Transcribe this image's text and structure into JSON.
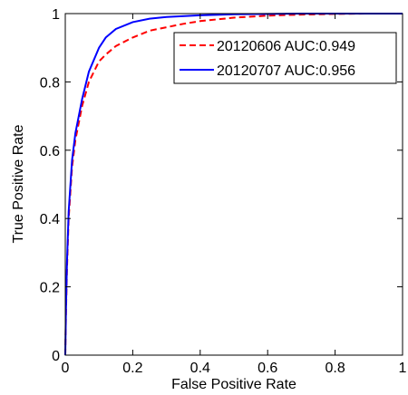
{
  "chart_data": {
    "type": "line",
    "title": "",
    "xlabel": "False Positive Rate",
    "ylabel": "True Positive Rate",
    "xlim": [
      0,
      1
    ],
    "ylim": [
      0,
      1
    ],
    "xticks": [
      "0",
      "0.2",
      "0.4",
      "0.6",
      "0.8",
      "1"
    ],
    "yticks": [
      "0",
      "0.2",
      "0.4",
      "0.6",
      "0.8",
      "1"
    ],
    "grid": false,
    "legend_position": "top-right",
    "series": [
      {
        "name": "20120606 AUC:0.949",
        "color": "#ff0000",
        "style": "dashed",
        "x": [
          0,
          0.002,
          0.005,
          0.01,
          0.02,
          0.03,
          0.05,
          0.07,
          0.1,
          0.12,
          0.15,
          0.2,
          0.25,
          0.3,
          0.35,
          0.4,
          0.5,
          0.6,
          0.7,
          0.8,
          0.9,
          1.0
        ],
        "y": [
          0,
          0.12,
          0.25,
          0.4,
          0.55,
          0.63,
          0.73,
          0.8,
          0.86,
          0.88,
          0.905,
          0.93,
          0.95,
          0.96,
          0.97,
          0.978,
          0.988,
          0.994,
          0.997,
          0.999,
          1.0,
          1.0
        ]
      },
      {
        "name": "20120707 AUC:0.956",
        "color": "#0000ff",
        "style": "solid",
        "x": [
          0,
          0.002,
          0.005,
          0.01,
          0.02,
          0.03,
          0.05,
          0.07,
          0.1,
          0.12,
          0.15,
          0.2,
          0.25,
          0.3,
          0.4,
          0.5,
          0.6,
          0.7,
          0.8,
          0.9,
          1.0
        ],
        "y": [
          0,
          0.13,
          0.27,
          0.42,
          0.57,
          0.65,
          0.75,
          0.83,
          0.9,
          0.93,
          0.955,
          0.975,
          0.985,
          0.99,
          0.995,
          0.998,
          0.999,
          1.0,
          1.0,
          1.0,
          1.0
        ]
      }
    ]
  }
}
